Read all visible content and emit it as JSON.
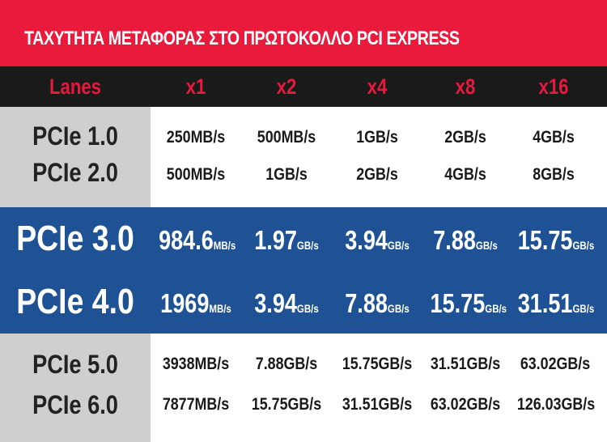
{
  "title": "ΤΑΧΥΤΗΤΑ ΜΕΤΑΦΟΡΑΣ ΣΤΟ ΠΡΩΤΟΚΟΛΛΟ PCI EXPRESS",
  "colors": {
    "title_bar": "#ea1a3c",
    "header_bar": "#1a1a1a",
    "header_text": "#e8193c",
    "label_column": "#cfcfcf",
    "highlight_band": "#1f5294"
  },
  "table": {
    "headers": [
      "Lanes",
      "x1",
      "x2",
      "x4",
      "x8",
      "x16"
    ],
    "group_top": [
      {
        "label": "PCIe 1.0",
        "values": [
          "250MB/s",
          "500MB/s",
          "1GB/s",
          "2GB/s",
          "4GB/s"
        ]
      },
      {
        "label": "PCIe 2.0",
        "values": [
          "500MB/s",
          "1GB/s",
          "2GB/s",
          "4GB/s",
          "8GB/s"
        ]
      }
    ],
    "group_highlight": [
      {
        "label": "PCIe 3.0",
        "values": [
          {
            "num": "984.6",
            "unit": "MB/s"
          },
          {
            "num": "1.97",
            "unit": "GB/s"
          },
          {
            "num": "3.94",
            "unit": "GB/s"
          },
          {
            "num": "7.88",
            "unit": "GB/s"
          },
          {
            "num": "15.75",
            "unit": "GB/s"
          }
        ]
      },
      {
        "label": "PCIe 4.0",
        "values": [
          {
            "num": "1969",
            "unit": "MB/s"
          },
          {
            "num": "3.94",
            "unit": "GB/s"
          },
          {
            "num": "7.88",
            "unit": "GB/s"
          },
          {
            "num": "15.75",
            "unit": "GB/s"
          },
          {
            "num": "31.51",
            "unit": "GB/s"
          }
        ]
      }
    ],
    "group_bottom": [
      {
        "label": "PCIe 5.0",
        "values": [
          "3938MB/s",
          "7.88GB/s",
          "15.75GB/s",
          "31.51GB/s",
          "63.02GB/s"
        ]
      },
      {
        "label": "PCIe 6.0",
        "values": [
          "7877MB/s",
          "15.75GB/s",
          "31.51GB/s",
          "63.02GB/s",
          "126.03GB/s"
        ]
      }
    ]
  }
}
